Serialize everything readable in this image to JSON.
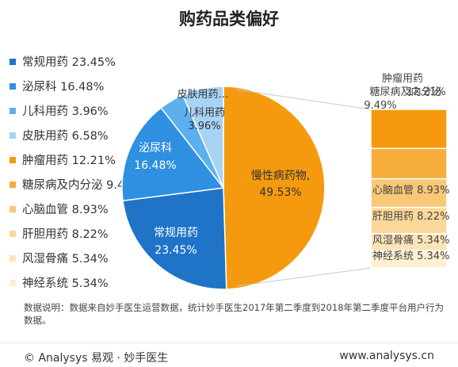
{
  "title": "购药品类偏好",
  "chart_data": {
    "type": "pie",
    "title": "购药品类偏好",
    "main_slices": [
      {
        "label": "常规用药",
        "value": 23.45,
        "display": "23.45%",
        "color": "#1f74c8"
      },
      {
        "label": "泌尿科",
        "value": 16.48,
        "display": "16.48%",
        "color": "#2f8fe0"
      },
      {
        "label": "儿科用药",
        "value": 3.96,
        "display": "3.96%",
        "color": "#5cb0ee"
      },
      {
        "label": "皮肤用药",
        "value": 6.58,
        "display": "6.58%",
        "color": "#a7d3f5"
      },
      {
        "label": "慢性病药物",
        "value": 49.53,
        "display": "49.53%",
        "color": "#f59a0e"
      }
    ],
    "breakdown_bar": {
      "parent": "慢性病药物",
      "segments": [
        {
          "label": "肿瘤用药",
          "value": 12.21,
          "display": "12.21%",
          "color": "#f59a0e"
        },
        {
          "label": "糖尿病及内分泌",
          "value": 9.49,
          "display": "9.49%",
          "color": "#f6ad3c"
        },
        {
          "label": "心脑血管",
          "value": 8.93,
          "display": "8.93%",
          "color": "#f9c877"
        },
        {
          "label": "肝胆用药",
          "value": 8.22,
          "display": "8.22%",
          "color": "#fbd89a"
        },
        {
          "label": "风湿骨痛",
          "value": 5.34,
          "display": "5.34%",
          "color": "#fce4b8"
        },
        {
          "label": "神经系统",
          "value": 5.34,
          "display": "5.34%",
          "color": "#fdefd2"
        }
      ]
    },
    "pie_labels": {
      "changgui": "常规用药",
      "changgui_value": "23.45%",
      "miniao": "泌尿科",
      "miniao_value": "16.48%",
      "erke": "儿科用药",
      "erke_value": "3.96%",
      "pifu": "皮肤用药…",
      "manxing": "慢性病药物,",
      "manxing_value": "49.53%"
    },
    "bar_labels": {
      "zhongliu": "肿瘤用药",
      "zhongliu_value": "12.21%",
      "tangniao": "糖尿病及内分泌",
      "tangniao_value": "9.49%",
      "xinnao": "心脑血管 8.93%",
      "gandan": "肝胆用药 8.22%",
      "fengshi": "风湿骨痛 5.34%",
      "shenjing": "神经系统 5.34%"
    }
  },
  "legend": [
    {
      "text": "常规用药 23.45%",
      "color": "#1f74c8"
    },
    {
      "text": "泌尿科 16.48%",
      "color": "#2f8fe0"
    },
    {
      "text": "儿科用药 3.96%",
      "color": "#5cb0ee"
    },
    {
      "text": "皮肤用药 6.58%",
      "color": "#a7d3f5"
    },
    {
      "text": "肿瘤用药 12.21%",
      "color": "#f59a0e"
    },
    {
      "text": "糖尿病及内分泌 9.49%",
      "color": "#f6ad3c"
    },
    {
      "text": "心脑血管 8.93%",
      "color": "#f9c877"
    },
    {
      "text": "肝胆用药 8.22%",
      "color": "#fbd89a"
    },
    {
      "text": "风湿骨痛 5.34%",
      "color": "#fce4b8"
    },
    {
      "text": "神经系统 5.34%",
      "color": "#fdefd2"
    }
  ],
  "note": "数据说明：数据来自妙手医生运营数据，统计妙手医生2017年第二季度到2018年第二季度平台用户行为数据。",
  "footer": {
    "left": "© Analysys 易观 · 妙手医生",
    "right": "www.analysys.cn"
  }
}
